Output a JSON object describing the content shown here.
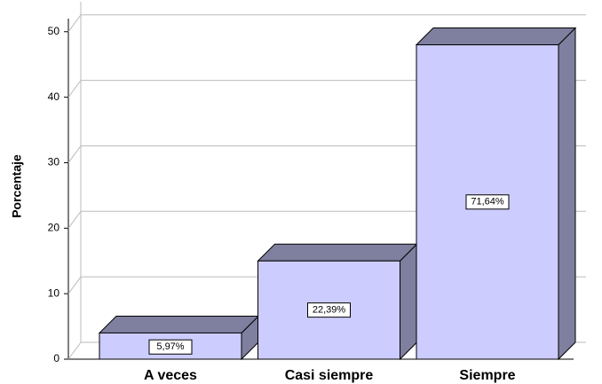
{
  "chart_data": {
    "type": "bar3d",
    "y_label": "Porcentaje",
    "categories": [
      "A veces",
      "Casi siempre",
      "Siempre"
    ],
    "values": [
      4,
      15,
      48
    ],
    "data_labels": [
      "5,97%",
      "22,39%",
      "71,64%"
    ],
    "color": "#ccccff",
    "shade_color": "#7f7f9f",
    "ylim": [
      0,
      52
    ],
    "yticks": [
      0,
      10,
      20,
      30,
      40,
      50
    ],
    "grid": true
  }
}
